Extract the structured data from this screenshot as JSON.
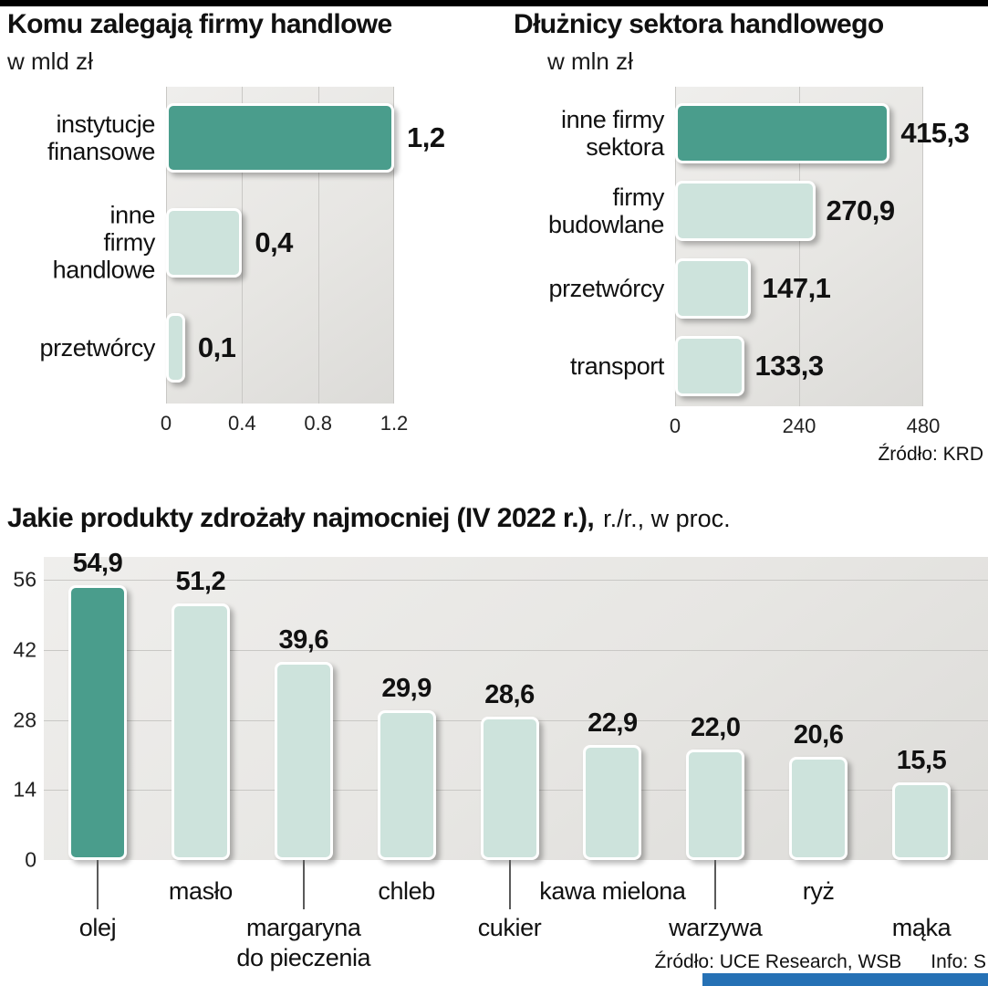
{
  "page": {
    "accent_dark": "#4a9d8c",
    "accent_light": "#cde3dc",
    "top_bar_color": "#000000",
    "blue_bar_color": "#2671b5",
    "plot_bg": "#e8e7e4"
  },
  "sources": {
    "krd": "Źródło: KRD",
    "bottom_left": "Źródło: UCE Research, WSB",
    "bottom_right": "Info: S"
  },
  "chart_data": [
    {
      "type": "bar",
      "orientation": "horizontal",
      "title": "Komu zalegają firmy handlowe",
      "subtitle": "w mld zł",
      "categories": [
        "instytucje\nfinansowe",
        "inne\nfirmy\nhandlowe",
        "przetwórcy"
      ],
      "values": [
        1.2,
        0.4,
        0.1
      ],
      "value_labels": [
        "1,2",
        "0,4",
        "0,1"
      ],
      "highlight_index": 0,
      "xlim": [
        0,
        1.2
      ],
      "xticks": [
        0,
        0.4,
        0.8,
        1.2
      ],
      "xtick_labels": [
        "0",
        "0.4",
        "0.8",
        "1.2"
      ],
      "grid": "vertical",
      "legend": "none"
    },
    {
      "type": "bar",
      "orientation": "horizontal",
      "title": "Dłużnicy sektora handlowego",
      "subtitle": "w mln zł",
      "categories": [
        "inne firmy\nsektora",
        "firmy\nbudowlane",
        "przetwórcy",
        "transport"
      ],
      "values": [
        415.3,
        270.9,
        147.1,
        133.3
      ],
      "value_labels": [
        "415,3",
        "270,9",
        "147,1",
        "133,3"
      ],
      "highlight_index": 0,
      "xlim": [
        0,
        480
      ],
      "xticks": [
        0,
        240,
        480
      ],
      "xtick_labels": [
        "0",
        "240",
        "480"
      ],
      "grid": "vertical",
      "legend": "none"
    },
    {
      "type": "bar",
      "orientation": "vertical",
      "title": "Jakie produkty zdrożały najmocniej (IV 2022 r.),",
      "title_suffix": "r./r., w proc.",
      "categories": [
        "olej",
        "masło",
        "margaryna\ndo pieczenia",
        "chleb",
        "cukier",
        "kawa mielona",
        "warzywa",
        "ryż",
        "mąka"
      ],
      "values": [
        54.9,
        51.2,
        39.6,
        29.9,
        28.6,
        22.9,
        22.0,
        20.6,
        15.5
      ],
      "value_labels": [
        "54,9",
        "51,2",
        "39,6",
        "29,9",
        "28,6",
        "22,9",
        "22,0",
        "20,6",
        "15,5"
      ],
      "highlight_index": 0,
      "ylim": [
        0,
        56
      ],
      "yticks": [
        0,
        14,
        28,
        42,
        56
      ],
      "ytick_labels": [
        "0",
        "14",
        "28",
        "42",
        "56"
      ],
      "label_rows": [
        "lower",
        "upper",
        "lower",
        "upper",
        "lower",
        "upper",
        "lower",
        "upper",
        "lower"
      ],
      "tick_line_bars": [
        0,
        2,
        4,
        6
      ],
      "grid": "horizontal",
      "legend": "none"
    }
  ]
}
